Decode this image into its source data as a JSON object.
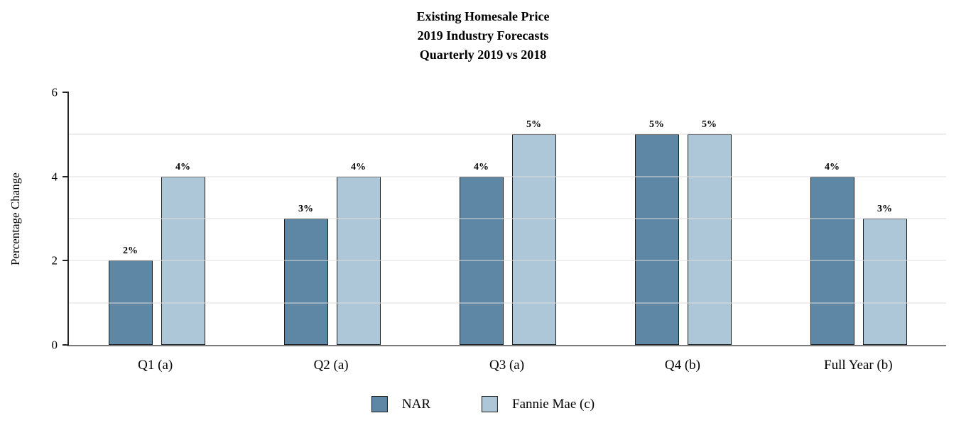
{
  "chart_data": {
    "type": "bar",
    "title_lines": [
      "Existing Homesale Price",
      "2019 Industry Forecasts",
      "Quarterly 2019 vs 2018"
    ],
    "ylabel": "Percentage Change",
    "categories": [
      "Q1 (a)",
      "Q2 (a)",
      "Q3 (a)",
      "Q4 (b)",
      "Full Year (b)"
    ],
    "series": [
      {
        "name": "NAR",
        "color": "#5e87a5",
        "values": [
          2,
          3,
          4,
          5,
          4
        ]
      },
      {
        "name": "Fannie Mae (c)",
        "color": "#aec7d8",
        "values": [
          4,
          4,
          5,
          5,
          3
        ]
      }
    ],
    "value_suffix": "%",
    "ylim": [
      0,
      6
    ],
    "yticks": [
      0,
      2,
      4,
      6
    ],
    "gridlines": [
      1,
      2,
      3,
      4,
      5
    ],
    "legend_position": "bottom",
    "grid": "horizontal-light",
    "colors": {
      "bar_border": "#1f1f1f",
      "axis_left": "#262626",
      "axis_bottom": "#7a7a7a",
      "gridline": "#dcdcdc"
    }
  }
}
